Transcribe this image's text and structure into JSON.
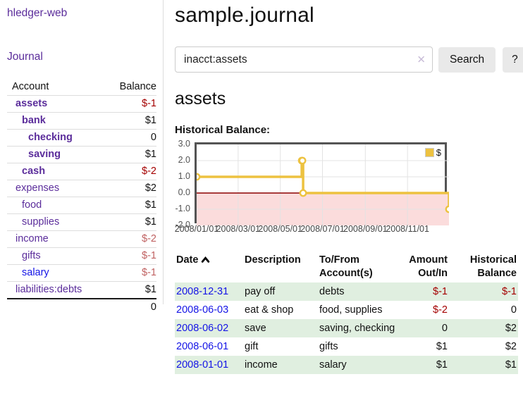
{
  "app": {
    "brand": "hledger-web",
    "nav_journal": "Journal"
  },
  "colors": {
    "link_purple": "#5b2d9b",
    "link_blue": "#1414e6",
    "negative_strong": "#a40000",
    "negative_soft": "#c06262",
    "row_stripe_green": "#e0efe0",
    "series_gold": "#edc240",
    "chart_negative_fill": "#fbdcdc",
    "chart_zero_line": "#8b0000",
    "button_bg": "#e9e9e9",
    "divider": "#dddddd"
  },
  "sidebar": {
    "table": {
      "headers": {
        "account": "Account",
        "balance": "Balance"
      },
      "rows": [
        {
          "account": "assets",
          "balance": "$-1",
          "level": 1,
          "bold": true,
          "balance_class": "negS",
          "link": "purple"
        },
        {
          "account": "bank",
          "balance": "$1",
          "level": 2,
          "bold": true,
          "balance_class": "",
          "link": "purple"
        },
        {
          "account": "checking",
          "balance": "0",
          "level": 3,
          "bold": true,
          "balance_class": "",
          "link": "purple"
        },
        {
          "account": "saving",
          "balance": "$1",
          "level": 3,
          "bold": true,
          "balance_class": "",
          "link": "purple"
        },
        {
          "account": "cash",
          "balance": "$-2",
          "level": 2,
          "bold": true,
          "balance_class": "negS",
          "link": "purple"
        },
        {
          "account": "expenses",
          "balance": "$2",
          "level": 1,
          "bold": false,
          "balance_class": "",
          "link": "purple"
        },
        {
          "account": "food",
          "balance": "$1",
          "level": 2,
          "bold": false,
          "balance_class": "",
          "link": "purple"
        },
        {
          "account": "supplies",
          "balance": "$1",
          "level": 2,
          "bold": false,
          "balance_class": "",
          "link": "purple"
        },
        {
          "account": "income",
          "balance": "$-2",
          "level": 1,
          "bold": false,
          "balance_class": "negW",
          "link": "purple"
        },
        {
          "account": "gifts",
          "balance": "$-1",
          "level": 2,
          "bold": false,
          "balance_class": "negW",
          "link": "purple"
        },
        {
          "account": "salary",
          "balance": "$-1",
          "level": 2,
          "bold": false,
          "balance_class": "negW",
          "link": "blue"
        },
        {
          "account": "liabilities:debts",
          "balance": "$1",
          "level": 1,
          "bold": false,
          "balance_class": "",
          "link": "purple"
        }
      ],
      "total": "0"
    }
  },
  "header": {
    "title": "sample.journal"
  },
  "search": {
    "value": "inacct:assets",
    "clear_icon": "✕",
    "button": "Search",
    "help_button": "?"
  },
  "main": {
    "account_heading": "assets",
    "chart_label": "Historical Balance:"
  },
  "chart_data": {
    "type": "line",
    "title": "Historical Balance:",
    "step": true,
    "x_range": [
      "2008/01/01",
      "2008/12/31"
    ],
    "x_ticks": [
      "2008/01/01",
      "2008/03/01",
      "2008/05/01",
      "2008/07/01",
      "2008/09/01",
      "2008/11/01"
    ],
    "y_ticks": [
      "3.0",
      "2.0",
      "1.0",
      "0.0",
      "-1.0",
      "-2.0"
    ],
    "ylim": [
      -2,
      3
    ],
    "grid": true,
    "series": [
      {
        "name": "$",
        "color": "#edc240",
        "points": [
          [
            "2008/01/01",
            1
          ],
          [
            "2008/06/01",
            2
          ],
          [
            "2008/06/02",
            2
          ],
          [
            "2008/06/03",
            0
          ],
          [
            "2008/12/31",
            -1
          ]
        ]
      }
    ],
    "legend": {
      "position": "top-right",
      "label": "$"
    },
    "negative_region_fill": "#fbdcdc",
    "zero_line_color": "#8b0000"
  },
  "register": {
    "columns": [
      {
        "id": "date",
        "line1": "Date",
        "line2": "",
        "sorted": "asc"
      },
      {
        "id": "description",
        "line1": "Description",
        "line2": ""
      },
      {
        "id": "accounts",
        "line1": "To/From",
        "line2": "Account(s)"
      },
      {
        "id": "amount",
        "line1": "Amount",
        "line2": "Out/In"
      },
      {
        "id": "balance",
        "line1": "Historical",
        "line2": "Balance"
      }
    ],
    "rows": [
      {
        "date": "2008-12-31",
        "description": "pay off",
        "accounts": "debts",
        "amount": "$-1",
        "amount_neg": true,
        "balance": "$-1",
        "balance_neg": true
      },
      {
        "date": "2008-06-03",
        "description": "eat & shop",
        "accounts": "food, supplies",
        "amount": "$-2",
        "amount_neg": true,
        "balance": "0",
        "balance_neg": false
      },
      {
        "date": "2008-06-02",
        "description": "save",
        "accounts": "saving, checking",
        "amount": "0",
        "amount_neg": false,
        "balance": "$2",
        "balance_neg": false
      },
      {
        "date": "2008-06-01",
        "description": "gift",
        "accounts": "gifts",
        "amount": "$1",
        "amount_neg": false,
        "balance": "$2",
        "balance_neg": false
      },
      {
        "date": "2008-01-01",
        "description": "income",
        "accounts": "salary",
        "amount": "$1",
        "amount_neg": false,
        "balance": "$1",
        "balance_neg": false
      }
    ]
  }
}
